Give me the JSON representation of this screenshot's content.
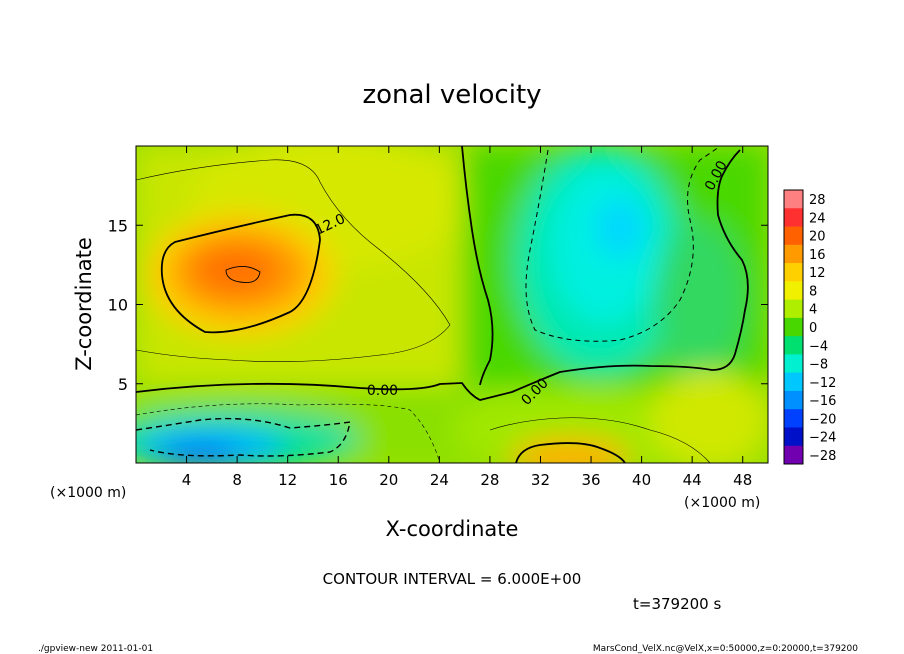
{
  "chart_data": {
    "type": "heatmap",
    "title": "zonal velocity",
    "xlabel": "X-coordinate",
    "ylabel": "Z-coordinate",
    "x_unit": "(×1000 m)",
    "z_unit": "(×1000 m)",
    "xlim": [
      0,
      50
    ],
    "zlim": [
      0,
      20
    ],
    "x_ticks": [
      4,
      8,
      12,
      16,
      20,
      24,
      28,
      32,
      36,
      40,
      44,
      48
    ],
    "x_tick_labels": [
      "4",
      "8",
      "12",
      "16",
      "20",
      "24",
      "28",
      "32",
      "36",
      "40",
      "44",
      "48"
    ],
    "z_ticks": [
      5,
      10,
      15
    ],
    "z_tick_labels": [
      "5",
      "10",
      "15"
    ],
    "colorbar": {
      "levels": [
        28,
        24,
        20,
        16,
        12,
        8,
        4,
        0,
        -4,
        -8,
        -12,
        -16,
        -20,
        -24,
        -28
      ],
      "labels": [
        "28",
        "24",
        "20",
        "16",
        "12",
        "8",
        "4",
        "0",
        "−4",
        "−8",
        "−12",
        "−16",
        "−20",
        "−24",
        "−28"
      ],
      "colors": [
        "#ff8080",
        "#ff3030",
        "#ff6000",
        "#ff9a00",
        "#ffd000",
        "#f0f000",
        "#b0ee00",
        "#48d800",
        "#00e070",
        "#00f0d0",
        "#00c8ff",
        "#0090ff",
        "#0040ff",
        "#0010c8",
        "#7000b0"
      ]
    },
    "contour_interval": 6,
    "contour_labels": [
      {
        "text": "12.0",
        "x": 15.5,
        "z": 14.8,
        "angle": -25
      },
      {
        "text": "0.00",
        "x": 19.5,
        "z": 4.3,
        "angle": 0
      },
      {
        "text": "0.00",
        "x": 31.8,
        "z": 4.3,
        "angle": -45
      },
      {
        "text": "0.00",
        "x": 46.2,
        "z": 18.0,
        "angle": -62
      }
    ]
  },
  "annotations": {
    "contour_interval_text": "CONTOUR INTERVAL = 6.000E+00",
    "time_text": "t=379200 s",
    "footer_left": "./gpview-new 2011-01-01",
    "footer_right": "MarsCond_VelX.nc@VelX,x=0:50000,z=0:20000,t=379200"
  }
}
